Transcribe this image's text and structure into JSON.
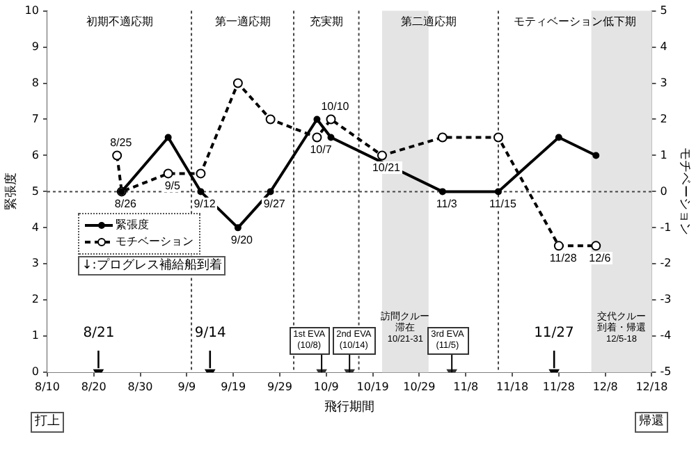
{
  "chart_data": {
    "type": "line",
    "xlabel": "飛行期間",
    "ylabel": "緊張度",
    "y2label": "モチベーション",
    "xlim": [
      "--08-10",
      "--12-18"
    ],
    "xticks": [
      {
        "value": "--08-10",
        "label": "8/10"
      },
      {
        "value": "--08-20",
        "label": "8/20"
      },
      {
        "value": "--08-30",
        "label": "8/30"
      },
      {
        "value": "--09-09",
        "label": "9/9"
      },
      {
        "value": "--09-19",
        "label": "9/19"
      },
      {
        "value": "--09-29",
        "label": "9/29"
      },
      {
        "value": "--10-09",
        "label": "10/9"
      },
      {
        "value": "--10-19",
        "label": "10/19"
      },
      {
        "value": "--10-29",
        "label": "10/29"
      },
      {
        "value": "--11-08",
        "label": "11/8"
      },
      {
        "value": "--11-18",
        "label": "11/18"
      },
      {
        "value": "--11-28",
        "label": "11/28"
      },
      {
        "value": "--12-08",
        "label": "12/8"
      },
      {
        "value": "--12-18",
        "label": "12/18"
      }
    ],
    "ylim": [
      0,
      10
    ],
    "yticks": [
      0,
      1,
      2,
      3,
      4,
      5,
      6,
      7,
      8,
      9,
      10
    ],
    "y2lim": [
      -5,
      5
    ],
    "y2ticks": [
      -5,
      -4,
      -3,
      -2,
      -1,
      0,
      1,
      2,
      3,
      4,
      5
    ],
    "grid": false,
    "legend": "left",
    "series": [
      {
        "name": "緊張度",
        "color": "#000000",
        "marker": "circle",
        "line_style": "solid",
        "x": [
          "--08-26",
          "--09-05",
          "--09-12",
          "--09-20",
          "--09-27",
          "--10-07",
          "--10-10",
          "--11-03",
          "--11-15",
          "--11-28",
          "--12-06"
        ],
        "values": [
          5,
          6.5,
          5,
          4,
          5,
          7,
          6.5,
          5,
          5,
          6.5,
          6
        ]
      },
      {
        "name": "モチベーション",
        "color": "#000000",
        "marker": "circle",
        "line_style": "dashed",
        "axis": "y2",
        "x": [
          "--08-25",
          "--08-26",
          "--09-05",
          "--09-12",
          "--09-20",
          "--09-27",
          "--10-07",
          "--10-10",
          "--10-21",
          "--11-03",
          "--11-15",
          "--11-28",
          "--12-06"
        ],
        "values": [
          1,
          0,
          0.5,
          0.5,
          3,
          2,
          1.5,
          2,
          1,
          1.5,
          1.5,
          -1.5,
          -1.5
        ]
      },
      {
        "type": "scatter",
        "color": "#000000",
        "marker": "triangle",
        "x": [
          "--08-21",
          "--09-14",
          "--11-27"
        ],
        "values": [
          0,
          0,
          0
        ]
      },
      {
        "type": "scatter",
        "color": "#333333",
        "marker": "triangle",
        "x": [
          "--10-08",
          "--10-14",
          "--11-05"
        ],
        "values": [
          0,
          0,
          0
        ]
      }
    ],
    "ref_lines": [
      {
        "axis": "y",
        "value": 5,
        "line_style": "dotted"
      },
      {
        "axis": "x",
        "value": "--09-10",
        "line_style": "dotted"
      },
      {
        "axis": "x",
        "value": "--10-02",
        "line_style": "dotted"
      },
      {
        "axis": "x",
        "value": "--10-16",
        "line_style": "dotted"
      },
      {
        "axis": "x",
        "value": "--11-15",
        "line_style": "dotted"
      }
    ],
    "bands": [
      {
        "axis": "x",
        "from": "--08-10",
        "to": "--09-10",
        "label": "初期不適応期",
        "color": "#ffffff"
      },
      {
        "axis": "x",
        "from": "--09-10",
        "to": "--10-02",
        "label": "第一適応期",
        "color": "#ffffff"
      },
      {
        "axis": "x",
        "from": "--10-02",
        "to": "--10-16",
        "label": "充実期",
        "color": "#ffffff"
      },
      {
        "axis": "x",
        "from": "--10-16",
        "to": "--11-15",
        "label": "第二適応期",
        "color": "#ffffff"
      },
      {
        "axis": "x",
        "from": "--11-15",
        "to": "--12-18",
        "label": "モティベーション低下期",
        "color": "#ffffff"
      },
      {
        "axis": "x",
        "from": "--10-21",
        "to": "--10-31",
        "label": "訪問クルー滞在\n10/21-31",
        "color": "#e4e4e4"
      },
      {
        "axis": "x",
        "from": "--12-05",
        "to": "--12-18",
        "label": "交代クルー到着・帰還\n12/5-18",
        "color": "#e4e4e4"
      }
    ],
    "annotations": [
      "↓:プログレス補給船到着",
      {
        "text": "8/25",
        "x": "--08-25",
        "y": 6
      },
      {
        "text": "8/26",
        "x": "--08-26",
        "y": 5
      },
      {
        "text": "9/5",
        "x": "--09-05",
        "y": 5.5
      },
      {
        "text": "9/12",
        "x": "--09-12",
        "y": 5
      },
      {
        "text": "9/20",
        "x": "--09-20",
        "y": 4
      },
      {
        "text": "9/27",
        "x": "--09-27",
        "y": 5
      },
      {
        "text": "10/7",
        "x": "--10-07",
        "y": 6.5
      },
      {
        "text": "10/10",
        "x": "--10-10",
        "y": 7
      },
      {
        "text": "10/21",
        "x": "--10-21",
        "y": 6
      },
      {
        "text": "11/3",
        "x": "--11-03",
        "y": 5
      },
      {
        "text": "11/15",
        "x": "--11-15",
        "y": 5
      },
      {
        "text": "11/28",
        "x": "--11-28",
        "y": 3.5
      },
      {
        "text": "12/6",
        "x": "--12-06",
        "y": 3.5
      },
      {
        "text": "8/21",
        "x": "--08-21",
        "y": 0
      },
      {
        "text": "9/14",
        "x": "--09-14",
        "y": 0
      },
      {
        "text": "11/27",
        "x": "--11-27",
        "y": 0
      },
      {
        "text": "1st EVA\n(10/8)",
        "x": "--10-08",
        "y": 0
      },
      {
        "text": "2nd EVA\n(10/14)",
        "x": "--10-14",
        "y": 0
      },
      {
        "text": "3rd EVA\n(11/5)",
        "x": "--11-05",
        "y": 0
      },
      "打上",
      "帰還"
    ]
  }
}
